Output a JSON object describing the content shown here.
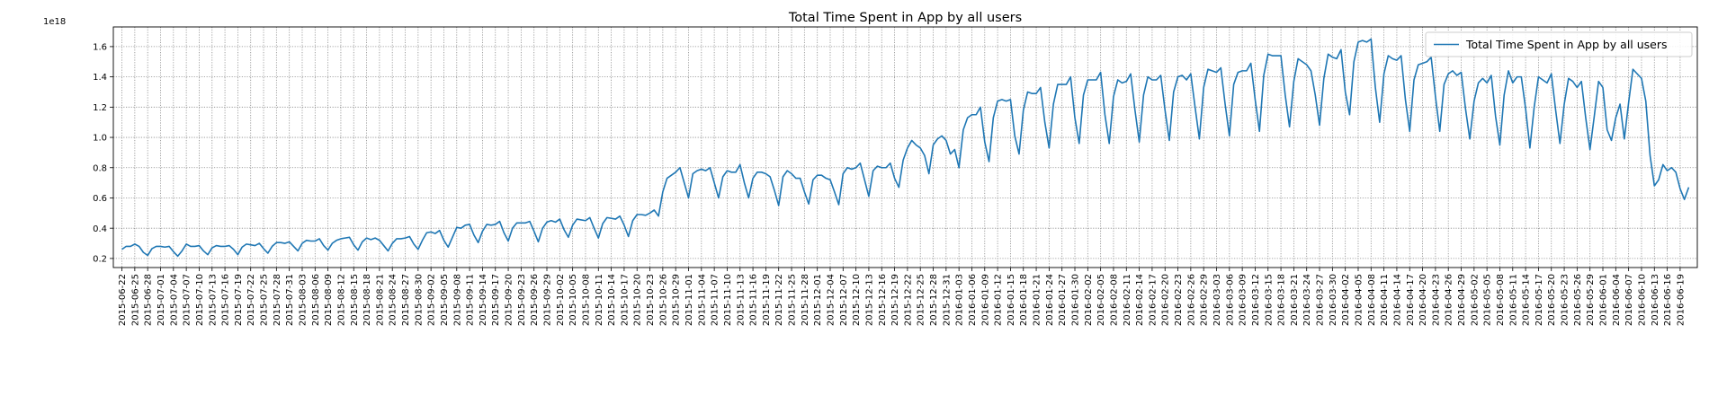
{
  "chart_data": {
    "type": "line",
    "title": "Total Time Spent in App by all users",
    "xlabel": "",
    "ylabel": "",
    "y_offset_label": "1e18",
    "y_scale": 1e+18,
    "ylim": [
      0.14,
      1.73
    ],
    "yticks": [
      0.2,
      0.4,
      0.6,
      0.8,
      1.0,
      1.2,
      1.4,
      1.6
    ],
    "ytick_labels": [
      "0.2",
      "0.4",
      "0.6",
      "0.8",
      "1.0",
      "1.2",
      "1.4",
      "1.6"
    ],
    "x_start": "2015-06-20",
    "x_end": "2016-06-23",
    "xtick_step_days": 3,
    "xticks_start": "2015-06-22",
    "xticks_end": "2016-06-19",
    "grid": true,
    "legend_position": "top-right",
    "series": [
      {
        "name": "Total Time Spent in App by all users",
        "color": "#1f77b4",
        "start": "2015-06-22",
        "step_days": 1,
        "values": [
          0.26,
          0.28,
          0.28,
          0.295,
          0.28,
          0.24,
          0.22,
          0.265,
          0.28,
          0.28,
          0.275,
          0.28,
          0.245,
          0.215,
          0.25,
          0.295,
          0.28,
          0.28,
          0.285,
          0.25,
          0.225,
          0.27,
          0.285,
          0.28,
          0.28,
          0.285,
          0.26,
          0.225,
          0.275,
          0.295,
          0.29,
          0.285,
          0.3,
          0.265,
          0.235,
          0.28,
          0.305,
          0.305,
          0.3,
          0.31,
          0.28,
          0.25,
          0.3,
          0.32,
          0.315,
          0.315,
          0.33,
          0.285,
          0.255,
          0.3,
          0.32,
          0.33,
          0.335,
          0.34,
          0.29,
          0.255,
          0.31,
          0.335,
          0.325,
          0.335,
          0.32,
          0.285,
          0.25,
          0.3,
          0.33,
          0.33,
          0.335,
          0.345,
          0.295,
          0.26,
          0.32,
          0.37,
          0.375,
          0.365,
          0.385,
          0.32,
          0.275,
          0.34,
          0.405,
          0.4,
          0.42,
          0.425,
          0.355,
          0.305,
          0.38,
          0.425,
          0.42,
          0.425,
          0.445,
          0.37,
          0.315,
          0.4,
          0.435,
          0.435,
          0.435,
          0.445,
          0.38,
          0.31,
          0.4,
          0.44,
          0.45,
          0.44,
          0.46,
          0.39,
          0.34,
          0.42,
          0.46,
          0.455,
          0.45,
          0.47,
          0.4,
          0.335,
          0.43,
          0.47,
          0.465,
          0.46,
          0.48,
          0.42,
          0.345,
          0.45,
          0.49,
          0.49,
          0.485,
          0.5,
          0.52,
          0.48,
          0.64,
          0.73,
          0.75,
          0.77,
          0.8,
          0.7,
          0.6,
          0.76,
          0.78,
          0.79,
          0.78,
          0.8,
          0.7,
          0.6,
          0.74,
          0.78,
          0.77,
          0.77,
          0.82,
          0.7,
          0.6,
          0.73,
          0.77,
          0.77,
          0.76,
          0.74,
          0.65,
          0.55,
          0.74,
          0.78,
          0.76,
          0.73,
          0.73,
          0.64,
          0.56,
          0.72,
          0.75,
          0.75,
          0.73,
          0.72,
          0.64,
          0.555,
          0.76,
          0.8,
          0.79,
          0.8,
          0.83,
          0.72,
          0.61,
          0.78,
          0.81,
          0.8,
          0.8,
          0.83,
          0.73,
          0.67,
          0.85,
          0.93,
          0.98,
          0.95,
          0.93,
          0.88,
          0.76,
          0.95,
          0.99,
          1.01,
          0.98,
          0.89,
          0.92,
          0.8,
          1.05,
          1.13,
          1.15,
          1.15,
          1.2,
          0.97,
          0.84,
          1.13,
          1.24,
          1.25,
          1.24,
          1.25,
          1.01,
          0.89,
          1.18,
          1.3,
          1.29,
          1.29,
          1.33,
          1.1,
          0.93,
          1.22,
          1.35,
          1.35,
          1.35,
          1.4,
          1.13,
          0.96,
          1.28,
          1.38,
          1.38,
          1.38,
          1.43,
          1.15,
          0.96,
          1.27,
          1.38,
          1.36,
          1.37,
          1.42,
          1.18,
          0.97,
          1.28,
          1.4,
          1.38,
          1.38,
          1.41,
          1.18,
          0.98,
          1.3,
          1.4,
          1.41,
          1.38,
          1.42,
          1.2,
          0.99,
          1.33,
          1.45,
          1.44,
          1.43,
          1.46,
          1.22,
          1.01,
          1.35,
          1.43,
          1.44,
          1.44,
          1.49,
          1.25,
          1.04,
          1.41,
          1.55,
          1.54,
          1.54,
          1.54,
          1.28,
          1.07,
          1.37,
          1.52,
          1.5,
          1.48,
          1.44,
          1.28,
          1.08,
          1.39,
          1.55,
          1.53,
          1.52,
          1.58,
          1.3,
          1.15,
          1.5,
          1.63,
          1.64,
          1.63,
          1.65,
          1.33,
          1.1,
          1.42,
          1.54,
          1.52,
          1.51,
          1.54,
          1.25,
          1.04,
          1.38,
          1.48,
          1.49,
          1.5,
          1.53,
          1.27,
          1.04,
          1.35,
          1.42,
          1.44,
          1.41,
          1.43,
          1.19,
          0.99,
          1.24,
          1.36,
          1.39,
          1.36,
          1.41,
          1.14,
          0.95,
          1.28,
          1.44,
          1.36,
          1.4,
          1.4,
          1.19,
          0.93,
          1.2,
          1.4,
          1.38,
          1.36,
          1.42,
          1.18,
          0.96,
          1.22,
          1.39,
          1.37,
          1.33,
          1.37,
          1.13,
          0.92,
          1.14,
          1.37,
          1.33,
          1.05,
          0.98,
          1.13,
          1.22,
          0.99,
          1.23,
          1.45,
          1.42,
          1.39,
          1.24,
          0.88,
          0.68,
          0.72,
          0.82,
          0.78,
          0.8,
          0.77,
          0.66,
          0.59,
          0.67
        ]
      }
    ]
  }
}
